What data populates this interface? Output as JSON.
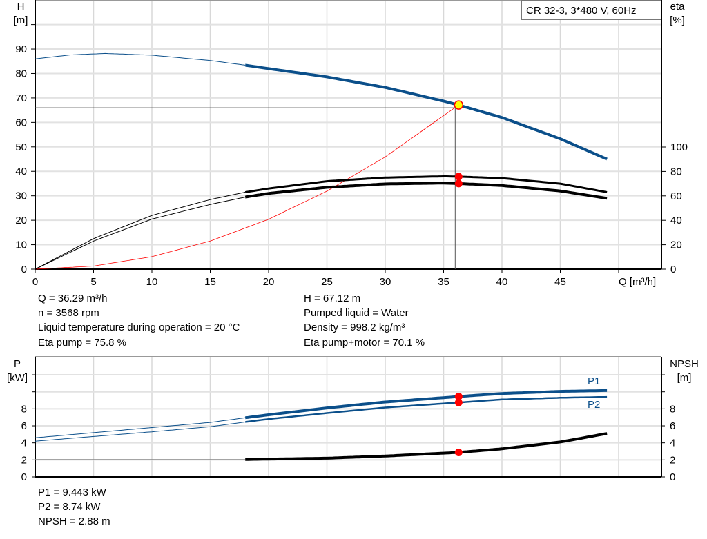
{
  "chart_data": [
    {
      "type": "line",
      "title": "CR 32-3, 3*480 V, 60Hz",
      "xlabel": "Q [m³/h]",
      "ylabel": [
        "H",
        "[m]"
      ],
      "y2label": [
        "eta",
        "[%]"
      ],
      "xlim": [
        0,
        53.7
      ],
      "ylim": [
        0,
        110
      ],
      "y2lim": [
        0,
        220
      ],
      "xticks": [
        "0",
        "5",
        "10",
        "15",
        "20",
        "25",
        "30",
        "35",
        "40",
        "45"
      ],
      "yticks": [
        "0",
        "10",
        "20",
        "30",
        "40",
        "50",
        "60",
        "70",
        "80",
        "90"
      ],
      "y2ticks": [
        "0",
        "20",
        "40",
        "60",
        "80",
        "100"
      ],
      "grid": true,
      "series": [
        {
          "id": "H",
          "axis": "left",
          "color": "#0b4f8a",
          "x": [
            0,
            3,
            6,
            10,
            15,
            18,
            20,
            25,
            30,
            35,
            36.29,
            40,
            45,
            49
          ],
          "y": [
            86,
            87.6,
            88.2,
            87.5,
            85.3,
            83.4,
            82,
            78.6,
            74.3,
            68.7,
            67.12,
            62,
            53.3,
            45
          ]
        },
        {
          "id": "eta-pump",
          "axis": "right",
          "color": "#000000",
          "x": [
            0,
            5,
            10,
            15,
            18,
            20,
            25,
            30,
            35,
            36.29,
            40,
            45,
            49
          ],
          "y": [
            0,
            25,
            44,
            57,
            63,
            66,
            72,
            75,
            76,
            75.8,
            74.5,
            70,
            63
          ]
        },
        {
          "id": "eta-pump-motor",
          "axis": "right",
          "color": "#000000",
          "x": [
            0,
            5,
            10,
            15,
            18,
            20,
            25,
            30,
            35,
            36.29,
            40,
            45,
            49
          ],
          "y": [
            0,
            23,
            41,
            53,
            59,
            62,
            67,
            69.8,
            70.5,
            70.1,
            68.5,
            64,
            58
          ]
        },
        {
          "id": "system",
          "axis": "left",
          "color": "#ff0000",
          "x": [
            0,
            5,
            10,
            15,
            20,
            25,
            30,
            36.29
          ],
          "y": [
            0,
            1.27,
            5.1,
            11.5,
            20.4,
            31.9,
            45.9,
            67.12
          ]
        }
      ],
      "operating_point": {
        "Q": 36.29,
        "H": 67.12,
        "eta_pump": 75.8,
        "eta_pump_motor": 70.1
      }
    },
    {
      "type": "line",
      "ylabel": [
        "P",
        "[kW]"
      ],
      "y2label": [
        "NPSH",
        "[m]"
      ],
      "xlim": [
        0,
        53.7
      ],
      "ylim": [
        0,
        14
      ],
      "yticks": [
        "0",
        "2",
        "4",
        "6",
        "8"
      ],
      "y2ticks": [
        "0",
        "2",
        "4",
        "6",
        "8"
      ],
      "grid": true,
      "series": [
        {
          "id": "P1",
          "name": "P1",
          "color": "#0b4f8a",
          "x": [
            0,
            5,
            10,
            15,
            18,
            20,
            25,
            30,
            36.29,
            40,
            45,
            49
          ],
          "y": [
            4.6,
            5.2,
            5.8,
            6.4,
            6.95,
            7.3,
            8.1,
            8.8,
            9.443,
            9.8,
            10.05,
            10.15
          ]
        },
        {
          "id": "P2",
          "name": "P2",
          "color": "#0b4f8a",
          "x": [
            0,
            5,
            10,
            15,
            18,
            20,
            25,
            30,
            36.29,
            40,
            45,
            49
          ],
          "y": [
            4.2,
            4.75,
            5.3,
            5.9,
            6.45,
            6.8,
            7.5,
            8.15,
            8.74,
            9.1,
            9.3,
            9.4
          ]
        },
        {
          "id": "NPSH",
          "color": "#000000",
          "x": [
            0,
            18,
            25,
            30,
            36.29,
            40,
            45,
            49
          ],
          "y": [
            2.05,
            2.05,
            2.2,
            2.45,
            2.88,
            3.3,
            4.1,
            5.1
          ]
        }
      ]
    }
  ],
  "info": {
    "q": "Q = 36.29 m³/h",
    "n": "n = 3568 rpm",
    "temp": "Liquid temperature during operation = 20 °C",
    "eta_pump": "Eta pump = 75.8 %",
    "h": "H = 67.12 m",
    "liquid": "Pumped liquid = Water",
    "density": "Density = 998.2 kg/m³",
    "eta_pm": "Eta pump+motor = 70.1 %",
    "p1": "P1 = 9.443 kW",
    "p2": "P2 = 8.74 kW",
    "npsh": "NPSH = 2.88 m"
  }
}
